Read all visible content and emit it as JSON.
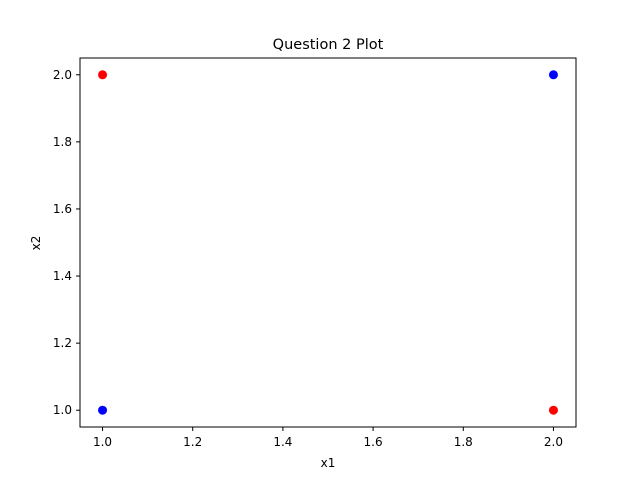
{
  "chart_data": {
    "type": "scatter",
    "title": "Question 2 Plot",
    "xlabel": "x1",
    "ylabel": "x2",
    "xlim": [
      0.95,
      2.05
    ],
    "ylim": [
      0.95,
      2.05
    ],
    "xticks": [
      "1.0",
      "1.2",
      "1.4",
      "1.6",
      "1.8",
      "2.0"
    ],
    "yticks": [
      "1.0",
      "1.2",
      "1.4",
      "1.6",
      "1.8",
      "2.0"
    ],
    "grid": false,
    "series": [
      {
        "color": "#ff0000",
        "points": [
          {
            "x": 1.0,
            "y": 2.0
          },
          {
            "x": 2.0,
            "y": 1.0
          }
        ]
      },
      {
        "color": "#0000ff",
        "points": [
          {
            "x": 1.0,
            "y": 1.0
          },
          {
            "x": 2.0,
            "y": 2.0
          }
        ]
      }
    ]
  }
}
